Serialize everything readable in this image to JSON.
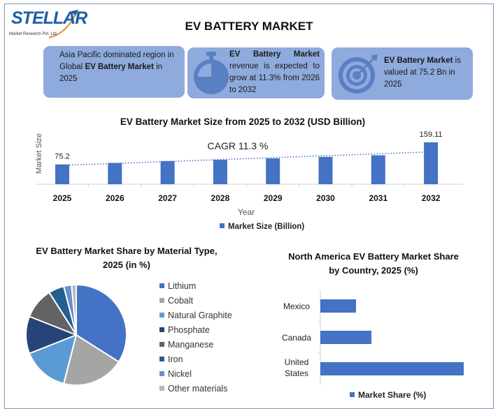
{
  "logo": {
    "text": "STELLAR",
    "subtitle": "Market Research Pvt. Ltd."
  },
  "title": "EV BATTERY MARKET",
  "cards": [
    {
      "pre": "Asia Pacific dominated region in Global ",
      "bold": "EV Battery Market",
      "post": " in 2025",
      "icon": "none"
    },
    {
      "pre": "",
      "bold": "EV Battery Market",
      "post": " revenue is expected to grow at 11.3% from 2026 to 2032",
      "icon": "stopwatch-icon"
    },
    {
      "pre": "",
      "bold": "EV Battery Market",
      "post": " is valued at 75.2 Bn in 2025",
      "icon": "target-icon"
    }
  ],
  "colors": {
    "bar": "#4472c4",
    "card": "#8faadc",
    "icon": "#5b7fc4"
  },
  "chart_data": [
    {
      "type": "bar",
      "title": "EV Battery Market Size from 2025 to 2032 (USD Billion)",
      "xlabel": "Year",
      "ylabel": "Market Size",
      "categories": [
        "2025",
        "2026",
        "2027",
        "2028",
        "2029",
        "2030",
        "2031",
        "2032"
      ],
      "series": [
        {
          "name": "Market Size (Billion)",
          "values": [
            75.2,
            81,
            88,
            93,
            98,
            104,
            110,
            159.11
          ]
        }
      ],
      "data_labels": {
        "2025": "75.2",
        "2032": "159.11"
      },
      "annotation": "CAGR 11.3 %",
      "trendline": "dotted linear",
      "ylim": [
        0,
        170
      ],
      "grid": false,
      "legend": "bottom"
    },
    {
      "type": "pie",
      "title": "EV Battery Market  Share by Material Type, 2025 (in %)",
      "categories": [
        "Lithium",
        "Cobalt",
        "Natural Graphite",
        "Phosphate",
        "Manganese",
        "Iron",
        "Nickel",
        "Other materials"
      ],
      "values": [
        34,
        20,
        15,
        12,
        10,
        5,
        2.5,
        1.5
      ],
      "colors": [
        "#4472c4",
        "#a5a5a5",
        "#5b9bd5",
        "#264478",
        "#636363",
        "#255e91",
        "#698ed0",
        "#b7b7b7"
      ],
      "legend": "right"
    },
    {
      "type": "bar",
      "orientation": "horizontal",
      "title": "North America EV Battery Market Share by Country, 2025  (%)",
      "categories": [
        "Mexico",
        "Canada",
        "United States"
      ],
      "series": [
        {
          "name": "Market Share (%)",
          "values": [
            15.5,
            22.2,
            62.3
          ]
        }
      ],
      "grid": false,
      "legend": "bottom"
    }
  ]
}
